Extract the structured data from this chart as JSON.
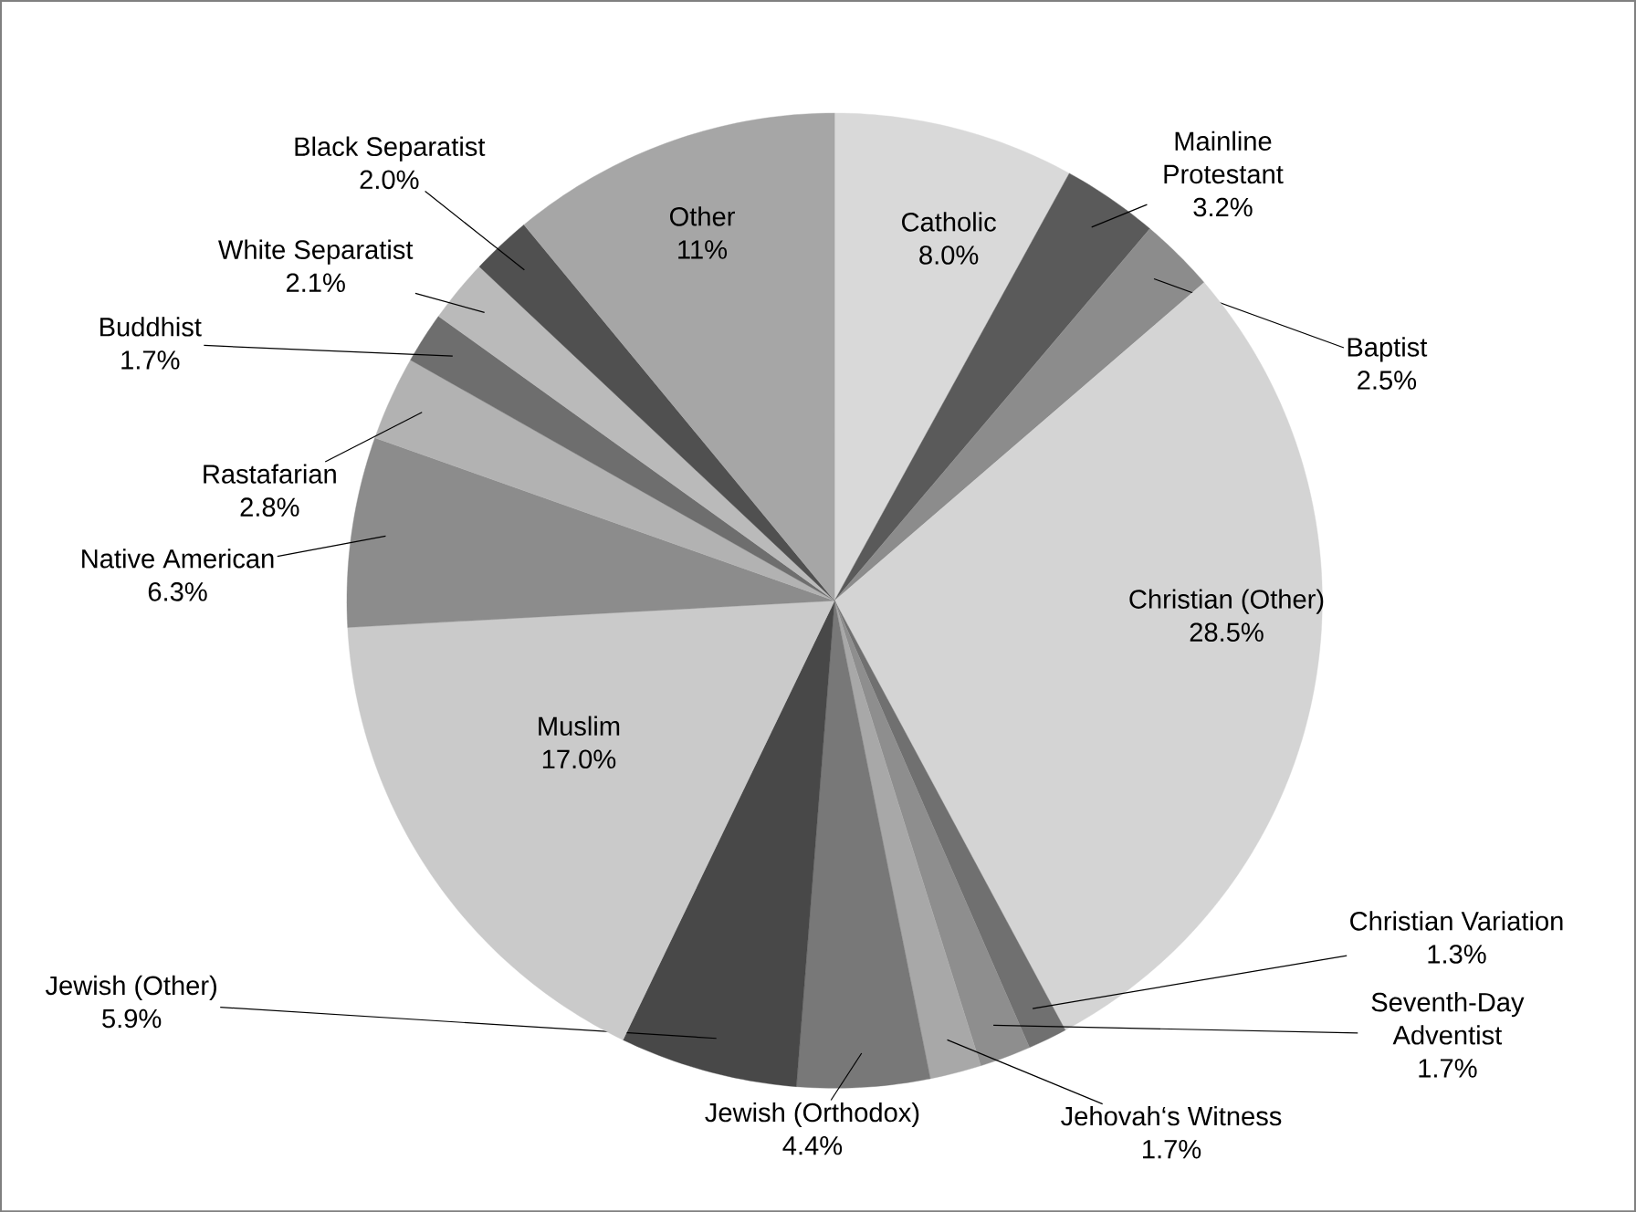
{
  "chart_data": {
    "type": "pie",
    "categories": [
      "Catholic",
      "Mainline Protestant",
      "Baptist",
      "Christian (Other)",
      "Christian Variation",
      "Seventh-Day Adventist",
      "Jehovah‘s Witness",
      "Jewish (Orthodox)",
      "Jewish (Other)",
      "Muslim",
      "Native American",
      "Rastafarian",
      "Buddhist",
      "White Separatist",
      "Black Separatist",
      "Other"
    ],
    "values": [
      8.0,
      3.2,
      2.5,
      28.5,
      1.3,
      1.7,
      1.7,
      4.4,
      5.9,
      17.0,
      6.3,
      2.8,
      1.7,
      2.1,
      2.0,
      11
    ],
    "value_labels": [
      "8.0%",
      "3.2%",
      "2.5%",
      "28.5%",
      "1.3%",
      "1.7%",
      "1.7%",
      "4.4%",
      "5.9%",
      "17.0%",
      "6.3%",
      "2.8%",
      "1.7%",
      "2.1%",
      "2.0%",
      "11%"
    ],
    "colors": [
      "#d9d9d9",
      "#5a5a5a",
      "#8c8c8c",
      "#d4d4d4",
      "#707070",
      "#8e8e8e",
      "#a8a8a8",
      "#787878",
      "#484848",
      "#cacaca",
      "#8c8c8c",
      "#b2b2b2",
      "#6e6e6e",
      "#bababa",
      "#505050",
      "#a6a6a6"
    ]
  }
}
